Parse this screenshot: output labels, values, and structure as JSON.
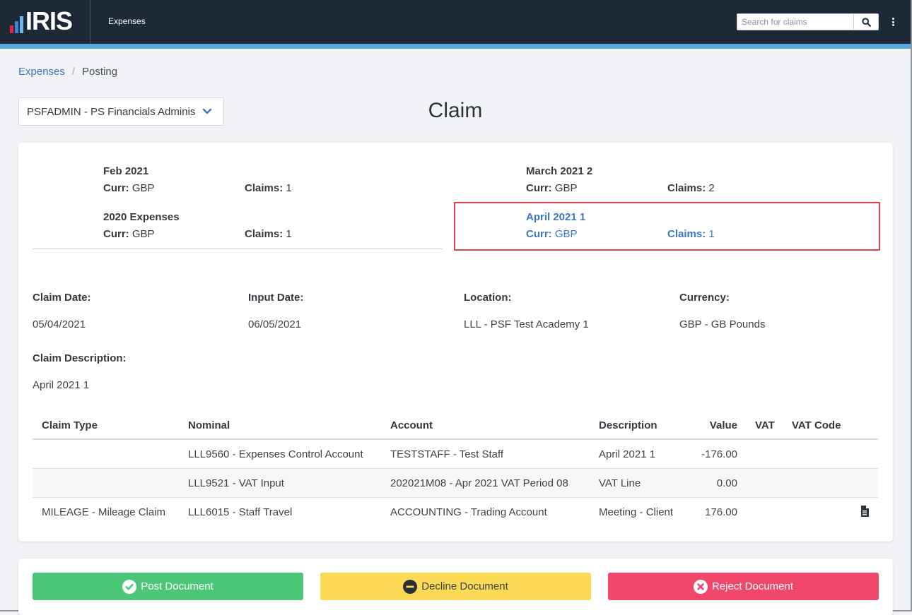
{
  "header": {
    "logo_text": "IRIS",
    "app_name": "Expenses",
    "search_placeholder": "Search for claims"
  },
  "breadcrumb": {
    "parent": "Expenses",
    "separator": "/",
    "current": "Posting"
  },
  "company_selector": {
    "value": "PSFADMIN - PS Financials Administrator"
  },
  "page_title": "Claim",
  "claim_groups": [
    {
      "name": "Feb 2021",
      "curr_label": "Curr:",
      "curr": "GBP",
      "claims_label": "Claims:",
      "claims": "1"
    },
    {
      "name": "March 2021 2",
      "curr_label": "Curr:",
      "curr": "GBP",
      "claims_label": "Claims:",
      "claims": "2"
    },
    {
      "name": "2020 Expenses",
      "curr_label": "Curr:",
      "curr": "GBP",
      "claims_label": "Claims:",
      "claims": "1"
    },
    {
      "name": "April 2021 1",
      "curr_label": "Curr:",
      "curr": "GBP",
      "claims_label": "Claims:",
      "claims": "1",
      "selected": true
    }
  ],
  "details": {
    "claim_date_label": "Claim Date:",
    "claim_date": "05/04/2021",
    "input_date_label": "Input Date:",
    "input_date": "06/05/2021",
    "location_label": "Location:",
    "location": "LLL - PSF Test Academy 1",
    "currency_label": "Currency:",
    "currency": "GBP - GB Pounds",
    "description_label": "Claim Description:",
    "description": "April 2021 1"
  },
  "table": {
    "headers": [
      "Claim Type",
      "Nominal",
      "Account",
      "Description",
      "Value",
      "VAT",
      "VAT Code"
    ],
    "rows": [
      {
        "claim_type": "",
        "nominal": "LLL9560 - Expenses Control Account",
        "account": "TESTSTAFF - Test Staff",
        "description": "April 2021 1",
        "value": "-176.00",
        "vat": "",
        "vat_code": ""
      },
      {
        "claim_type": "",
        "nominal": "LLL9521 - VAT Input",
        "account": "202021M08 - Apr 2021 VAT Period 08",
        "description": "VAT Line",
        "value": "0.00",
        "vat": "",
        "vat_code": ""
      },
      {
        "claim_type": "MILEAGE - Mileage Claim",
        "nominal": "LLL6015 - Staff Travel",
        "account": "ACCOUNTING - Trading Account",
        "description": "Meeting - Client",
        "value": "176.00",
        "vat": "",
        "vat_code": "",
        "attachment_icon": "document-icon"
      }
    ]
  },
  "actions": {
    "post": "Post Document",
    "decline": "Decline Document",
    "reject": "Reject Document"
  },
  "colors": {
    "topbar": "#1d2937",
    "accent": "#58a8de",
    "link": "#3a77c6",
    "post": "#4cc777",
    "decline": "#fcda55",
    "reject": "#f1476a",
    "highlight": "#e1454b"
  }
}
